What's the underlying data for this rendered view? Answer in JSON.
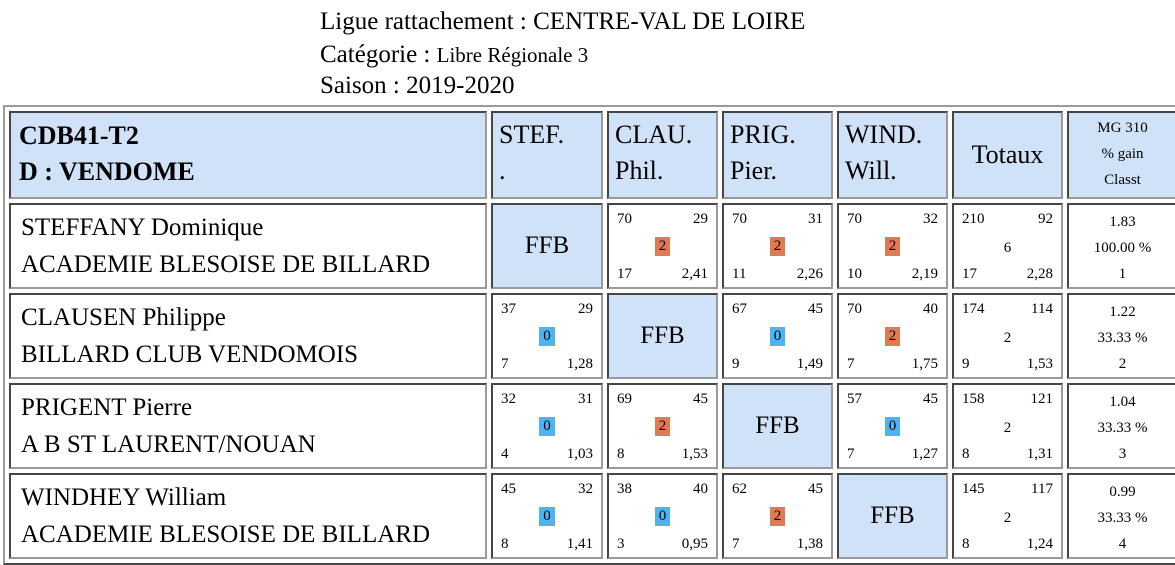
{
  "header": {
    "ligue_label": "Ligue rattachement :",
    "ligue_value": "CENTRE-VAL DE LOIRE",
    "categorie_label": "Catégorie :",
    "categorie_value": "Libre Régionale 3",
    "saison_label": "Saison :",
    "saison_value": "2019-2020"
  },
  "table": {
    "team_code": "CDB41-T2",
    "team_name": "D : VENDOME",
    "columns": [
      {
        "top": "STEF.",
        "bottom": "."
      },
      {
        "top": "CLAU.",
        "bottom": "Phil."
      },
      {
        "top": "PRIG.",
        "bottom": "Pier."
      },
      {
        "top": "WIND.",
        "bottom": "Will."
      }
    ],
    "totals_header": "Totaux",
    "mg_header": [
      "MG 310",
      "% gain",
      "Classt"
    ],
    "ffb_label": "FFB",
    "colors": {
      "cell_blue": "#cfe2f8",
      "win_badge": "#e07a55",
      "loss_badge": "#4cb4f0"
    },
    "rows": [
      {
        "name": "STEFFANY Dominique",
        "club": "ACADEMIE BLESOISE DE BILLARD",
        "matches": [
          null,
          {
            "tl": "70",
            "tr": "29",
            "pts": "2",
            "bl": "17",
            "br": "2,41",
            "result": "win"
          },
          {
            "tl": "70",
            "tr": "31",
            "pts": "2",
            "bl": "11",
            "br": "2,26",
            "result": "win"
          },
          {
            "tl": "70",
            "tr": "32",
            "pts": "2",
            "bl": "10",
            "br": "2,19",
            "result": "win"
          }
        ],
        "totals": {
          "tl": "210",
          "tr": "92",
          "mid": "6",
          "bl": "17",
          "br": "2,28"
        },
        "mg": {
          "avg": "1.83",
          "pct": "100.00 %",
          "rank": "1"
        }
      },
      {
        "name": "CLAUSEN Philippe",
        "club": "BILLARD CLUB VENDOMOIS",
        "matches": [
          {
            "tl": "37",
            "tr": "29",
            "pts": "0",
            "bl": "7",
            "br": "1,28",
            "result": "loss"
          },
          null,
          {
            "tl": "67",
            "tr": "45",
            "pts": "0",
            "bl": "9",
            "br": "1,49",
            "result": "loss"
          },
          {
            "tl": "70",
            "tr": "40",
            "pts": "2",
            "bl": "7",
            "br": "1,75",
            "result": "win"
          }
        ],
        "totals": {
          "tl": "174",
          "tr": "114",
          "mid": "2",
          "bl": "9",
          "br": "1,53"
        },
        "mg": {
          "avg": "1.22",
          "pct": "33.33 %",
          "rank": "2"
        }
      },
      {
        "name": "PRIGENT Pierre",
        "club": "A B ST LAURENT/NOUAN",
        "matches": [
          {
            "tl": "32",
            "tr": "31",
            "pts": "0",
            "bl": "4",
            "br": "1,03",
            "result": "loss"
          },
          {
            "tl": "69",
            "tr": "45",
            "pts": "2",
            "bl": "8",
            "br": "1,53",
            "result": "win"
          },
          null,
          {
            "tl": "57",
            "tr": "45",
            "pts": "0",
            "bl": "7",
            "br": "1,27",
            "result": "loss"
          }
        ],
        "totals": {
          "tl": "158",
          "tr": "121",
          "mid": "2",
          "bl": "8",
          "br": "1,31"
        },
        "mg": {
          "avg": "1.04",
          "pct": "33.33 %",
          "rank": "3"
        }
      },
      {
        "name": "WINDHEY William",
        "club": "ACADEMIE BLESOISE DE BILLARD",
        "matches": [
          {
            "tl": "45",
            "tr": "32",
            "pts": "0",
            "bl": "8",
            "br": "1,41",
            "result": "loss"
          },
          {
            "tl": "38",
            "tr": "40",
            "pts": "0",
            "bl": "3",
            "br": "0,95",
            "result": "loss"
          },
          {
            "tl": "62",
            "tr": "45",
            "pts": "2",
            "bl": "7",
            "br": "1,38",
            "result": "win"
          },
          null
        ],
        "totals": {
          "tl": "145",
          "tr": "117",
          "mid": "2",
          "bl": "8",
          "br": "1,24"
        },
        "mg": {
          "avg": "0.99",
          "pct": "33.33 %",
          "rank": "4"
        }
      }
    ]
  }
}
